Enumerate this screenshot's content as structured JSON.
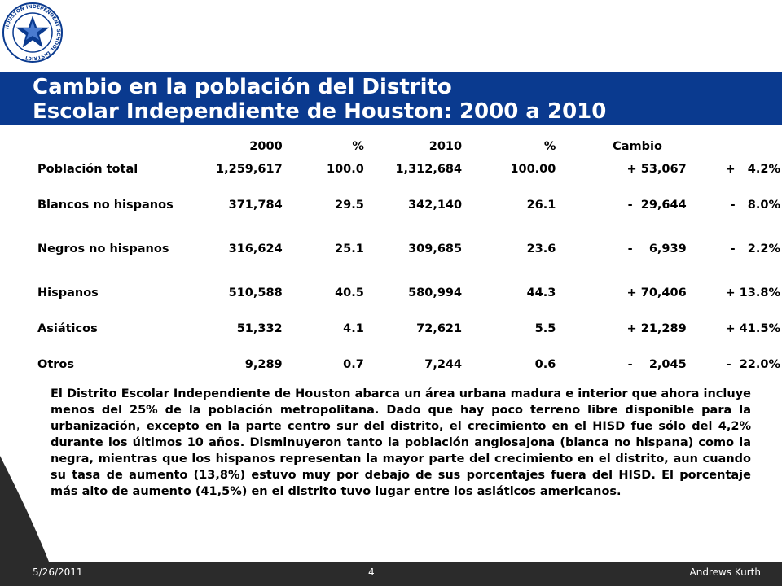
{
  "header": {
    "title_line1": "Cambio en la población del Distrito",
    "title_line2": "Escolar Independiente de Houston: 2000 a 2010",
    "logo_text": "HOUSTON INDEPENDENT SCHOOL DISTRICT",
    "brand_color": "#0a3a8f"
  },
  "table": {
    "headers": [
      "",
      "2000",
      "%",
      "2010",
      "%",
      "Cambio",
      ""
    ],
    "rows": [
      {
        "category": "Población total",
        "v2000": "1,259,617",
        "p2000": "100.0",
        "v2010": "1,312,684",
        "p2010": "100.00",
        "change": "+ 53,067",
        "change_pct": "+   4.2%"
      },
      {
        "category": "Blancos no hispanos",
        "v2000": "371,784",
        "p2000": "29.5",
        "v2010": "342,140",
        "p2010": "26.1",
        "change": "-  29,644",
        "change_pct": "-   8.0%"
      },
      {
        "category": "Negros no hispanos",
        "v2000": "316,624",
        "p2000": "25.1",
        "v2010": "309,685",
        "p2010": "23.6",
        "change": "-    6,939",
        "change_pct": "-   2.2%"
      },
      {
        "category": "Hispanos",
        "v2000": "510,588",
        "p2000": "40.5",
        "v2010": "580,994",
        "p2010": "44.3",
        "change": "+ 70,406",
        "change_pct": "+ 13.8%"
      },
      {
        "category": "Asiáticos",
        "v2000": "51,332",
        "p2000": "4.1",
        "v2010": "72,621",
        "p2010": "5.5",
        "change": "+ 21,289",
        "change_pct": "+ 41.5%"
      },
      {
        "category": "Otros",
        "v2000": "9,289",
        "p2000": "0.7",
        "v2010": "7,244",
        "p2010": "0.6",
        "change": "-    2,045",
        "change_pct": "-  22.0%"
      }
    ]
  },
  "paragraph": "El Distrito Escolar Independiente de Houston abarca un área urbana madura e interior que ahora incluye menos del 25% de la población metropolitana.  Dado que hay poco terreno libre disponible para la urbanización, excepto en la parte centro sur del distrito, el crecimiento en el HISD fue sólo del 4,2% durante los últimos 10 años.  Disminuyeron tanto la población anglosajona (blanca no hispana) como la negra, mientras que los hispanos representan la mayor parte del crecimiento en el distrito, aun cuando su tasa de aumento (13,8%) estuvo muy por debajo de sus porcentajes fuera del HISD.  El porcentaje más alto de aumento (41,5%) en el distrito tuvo lugar entre los asiáticos americanos.",
  "footer": {
    "date": "5/26/2011",
    "page": "4",
    "author": "Andrews Kurth"
  }
}
